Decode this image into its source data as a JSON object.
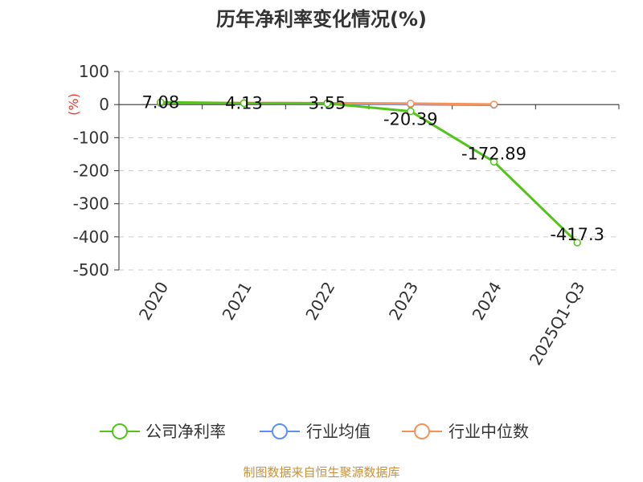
{
  "chart_data": {
    "type": "line",
    "title": "历年净利率变化情况(%)",
    "ylabel": "(%)",
    "xlabel": "",
    "categories": [
      "2020",
      "2021",
      "2022",
      "2023",
      "2024",
      "2025Q1-Q3"
    ],
    "ylim": [
      -500,
      100
    ],
    "yticks": [
      100,
      0,
      -100,
      -200,
      -300,
      -400,
      -500
    ],
    "grid": true,
    "legend_position": "bottom",
    "series": [
      {
        "name": "公司净利率",
        "color": "#52c41a",
        "values": [
          7.08,
          4.13,
          3.55,
          -20.39,
          -172.89,
          -417.3
        ],
        "labels": [
          "7.08",
          "4.13",
          "3.55",
          "-20.39",
          "-172.89",
          "-417.3"
        ]
      },
      {
        "name": "行业均值",
        "color": "#5b8ff9",
        "values": [
          4.0,
          4.5,
          4.0,
          1.0,
          -1.0,
          null
        ]
      },
      {
        "name": "行业中位数",
        "color": "#f4925a",
        "values": [
          6.0,
          5.0,
          4.5,
          3.0,
          0.5,
          null
        ]
      }
    ]
  },
  "source": "制图数据来自恒生聚源数据库"
}
